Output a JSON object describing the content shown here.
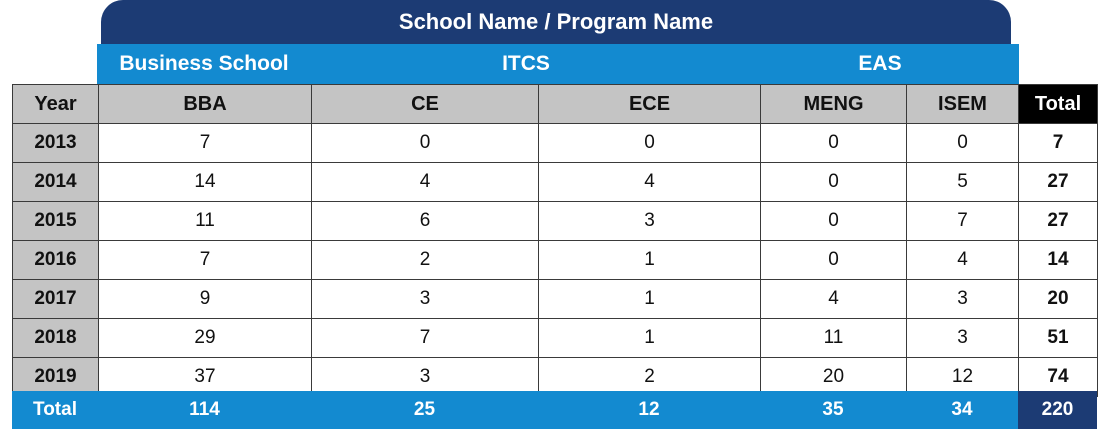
{
  "title": "School Name / Program Name",
  "schools": [
    "Business School",
    "ITCS",
    "EAS"
  ],
  "columns": [
    "Year",
    "BBA",
    "CE",
    "ECE",
    "MENG",
    "ISEM",
    "Total"
  ],
  "rows": [
    {
      "year": "2013",
      "values": [
        "7",
        "0",
        "0",
        "0",
        "0"
      ],
      "total": "7"
    },
    {
      "year": "2014",
      "values": [
        "14",
        "4",
        "4",
        "0",
        "5"
      ],
      "total": "27"
    },
    {
      "year": "2015",
      "values": [
        "11",
        "6",
        "3",
        "0",
        "7"
      ],
      "total": "27"
    },
    {
      "year": "2016",
      "values": [
        "7",
        "2",
        "1",
        "0",
        "4"
      ],
      "total": "14"
    },
    {
      "year": "2017",
      "values": [
        "9",
        "3",
        "1",
        "4",
        "3"
      ],
      "total": "20"
    },
    {
      "year": "2018",
      "values": [
        "29",
        "7",
        "1",
        "11",
        "3"
      ],
      "total": "51"
    },
    {
      "year": "2019",
      "values": [
        "37",
        "3",
        "2",
        "20",
        "12"
      ],
      "total": "74"
    }
  ],
  "totals": {
    "label": "Total",
    "values": [
      "114",
      "25",
      "12",
      "35",
      "34"
    ],
    "grand": "220"
  },
  "colors": {
    "navy": "#1c3b74",
    "blue": "#138ad0",
    "header_gray": "#c4c4c4"
  }
}
